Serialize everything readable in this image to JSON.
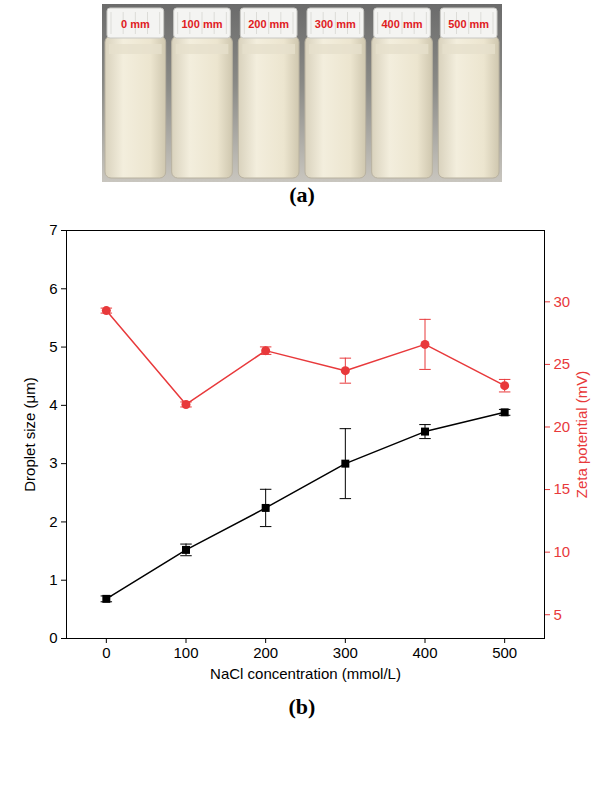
{
  "photo": {
    "vial_labels": [
      "0 mm",
      "100 mm",
      "200 mm",
      "300 mm",
      "400 mm",
      "500 mm"
    ],
    "caption": "(a)"
  },
  "chart_data": {
    "type": "line",
    "caption": "(b)",
    "x_label": "NaCl concentration (mmol/L)",
    "y_label": "Droplet size (μm)",
    "y2_label": "Zeta potential (mV)",
    "x": [
      0,
      100,
      200,
      300,
      400,
      500
    ],
    "xlim": [
      -50,
      550
    ],
    "xticks": [
      0,
      100,
      200,
      300,
      400,
      500
    ],
    "ylim": [
      0,
      7
    ],
    "yticks": [
      0,
      1,
      2,
      3,
      4,
      5,
      6,
      7
    ],
    "y2lim": [
      3.1,
      35.7
    ],
    "y2ticks": [
      5,
      10,
      15,
      20,
      25,
      30
    ],
    "grid": false,
    "series": [
      {
        "color": "#000000",
        "marker": "square",
        "values": [
          0.68,
          1.52,
          2.24,
          3.0,
          3.55,
          3.88
        ],
        "errors": [
          0.05,
          0.1,
          0.32,
          0.6,
          0.12,
          0.05
        ]
      },
      {
        "axis": "y2",
        "color": "#e8393b",
        "marker": "circle",
        "values": [
          29.3,
          21.8,
          26.1,
          24.5,
          26.6,
          23.3
        ],
        "errors": [
          0.2,
          0.2,
          0.3,
          1.0,
          2.0,
          0.5
        ]
      }
    ]
  }
}
